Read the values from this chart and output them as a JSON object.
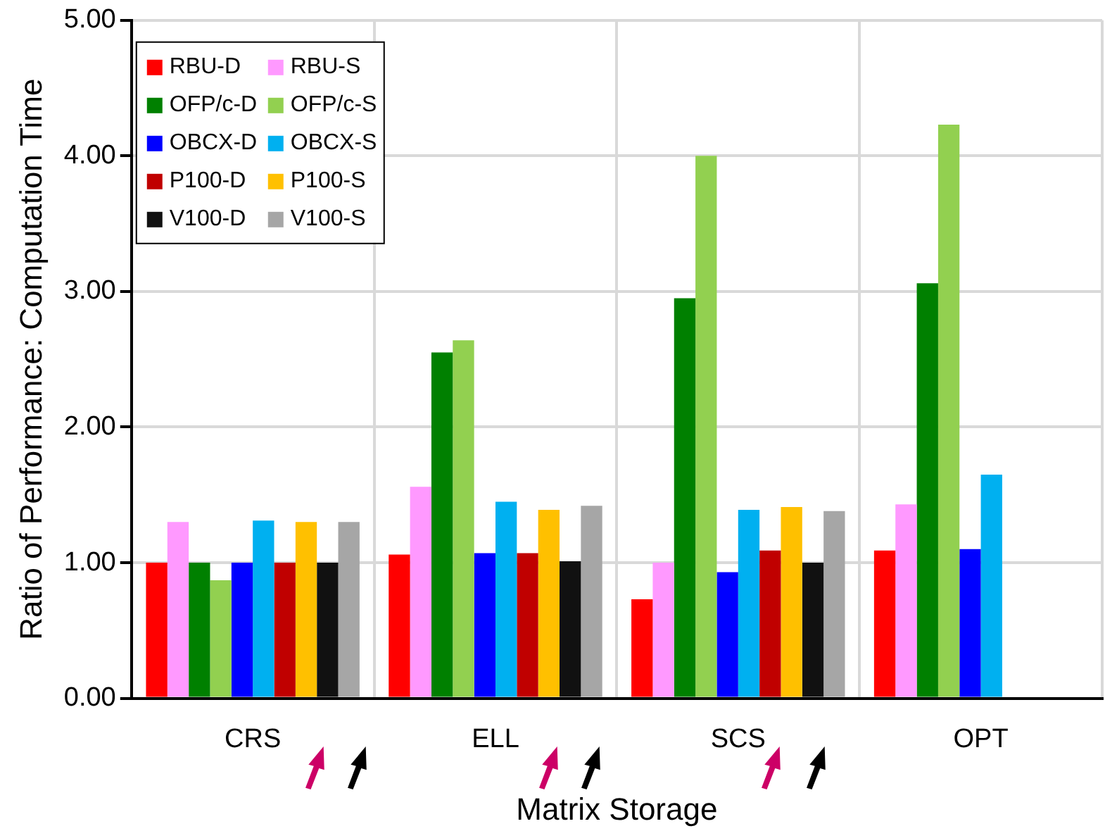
{
  "chart_data": {
    "type": "bar",
    "xlabel": "Matrix Storage",
    "ylabel": "Ratio of Performance: Computation Time",
    "categories": [
      "CRS",
      "ELL",
      "SCS",
      "OPT"
    ],
    "series": [
      {
        "name": "RBU-D",
        "color": "#ff0000",
        "values": [
          1.0,
          1.06,
          0.73,
          1.09
        ]
      },
      {
        "name": "RBU-S",
        "color": "#ff99ff",
        "values": [
          1.3,
          1.56,
          1.0,
          1.43
        ]
      },
      {
        "name": "OFP/c-D",
        "color": "#008000",
        "values": [
          1.0,
          2.55,
          2.95,
          3.06
        ]
      },
      {
        "name": "OFP/c-S",
        "color": "#92d050",
        "values": [
          0.87,
          2.64,
          4.0,
          4.23
        ]
      },
      {
        "name": "OBCX-D",
        "color": "#0000ff",
        "values": [
          1.0,
          1.07,
          0.93,
          1.1
        ]
      },
      {
        "name": "OBCX-S",
        "color": "#00b0f0",
        "values": [
          1.31,
          1.45,
          1.39,
          1.65
        ]
      },
      {
        "name": "P100-D",
        "color": "#c00000",
        "values": [
          1.0,
          1.07,
          1.09,
          null
        ]
      },
      {
        "name": "P100-S",
        "color": "#ffc000",
        "values": [
          1.3,
          1.39,
          1.41,
          null
        ]
      },
      {
        "name": "V100-D",
        "color": "#111111",
        "values": [
          1.0,
          1.01,
          1.0,
          null
        ]
      },
      {
        "name": "V100-S",
        "color": "#a6a6a6",
        "values": [
          1.3,
          1.42,
          1.38,
          null
        ]
      }
    ],
    "ylim": [
      0,
      5
    ],
    "yticks": [
      {
        "value": 0,
        "label": "0.00"
      },
      {
        "value": 1,
        "label": "1.00"
      },
      {
        "value": 2,
        "label": "2.00"
      },
      {
        "value": 3,
        "label": "3.00"
      },
      {
        "value": 4,
        "label": "4.00"
      },
      {
        "value": 5,
        "label": "5.00"
      }
    ],
    "grid": true,
    "legend": "top left"
  }
}
